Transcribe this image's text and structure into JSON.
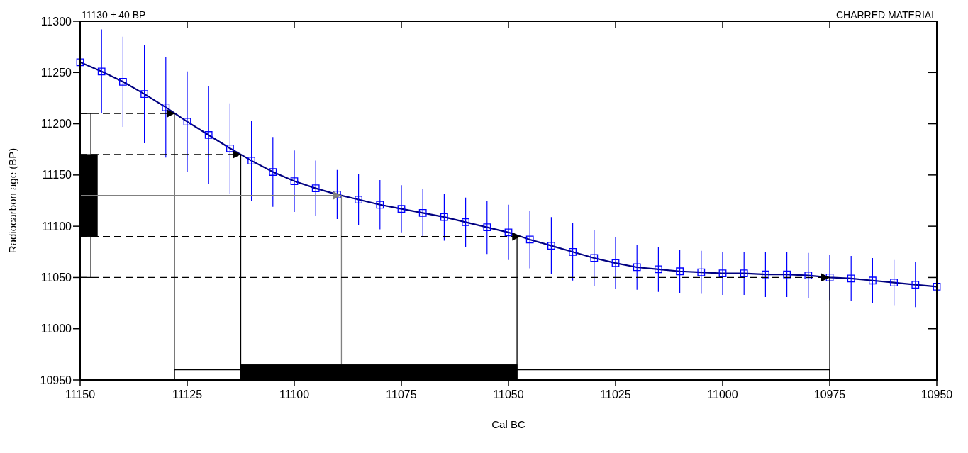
{
  "chart_data": {
    "type": "line",
    "title": "11130 ± 40 BP",
    "annotations": [
      "CHARRED MATERIAL"
    ],
    "xlabel": "Cal BC",
    "ylabel": "Radiocarbon age (BP)",
    "xlim": [
      11150,
      10950
    ],
    "xticks": [
      11150,
      11125,
      11100,
      11075,
      11050,
      11025,
      11000,
      10975,
      10950
    ],
    "ylim": [
      10950,
      11300
    ],
    "yticks": [
      10950,
      11000,
      11050,
      11100,
      11150,
      11200,
      11250,
      11300
    ],
    "grid": false,
    "series": [
      {
        "color": "#000080",
        "x": [
          11150,
          11145,
          11140,
          11135,
          11130,
          11125,
          11120,
          11115,
          11110,
          11105,
          11100,
          11095,
          11090,
          11085,
          11080,
          11075,
          11070,
          11065,
          11060,
          11055,
          11050,
          11045,
          11040,
          11035,
          11030,
          11025,
          11020,
          11015,
          11010,
          11005,
          11000,
          10995,
          10990,
          10985,
          10980,
          10975,
          10970,
          10965,
          10960,
          10955,
          10950
        ],
        "values": [
          11260,
          11251,
          11241,
          11229,
          11216,
          11202,
          11189,
          11176,
          11164,
          11153,
          11144,
          11137,
          11131,
          11126,
          11121,
          11117,
          11113,
          11109,
          11104,
          11099,
          11094,
          11087,
          11081,
          11075,
          11069,
          11064,
          11060,
          11058,
          11056,
          11055,
          11054,
          11054,
          11053,
          11053,
          11052,
          11050,
          11049,
          11047,
          11045,
          11043,
          11041
        ]
      },
      {
        "type": "scatter",
        "color": "#0000ff",
        "marker": "square",
        "x": [
          11150,
          11145,
          11140,
          11135,
          11130,
          11125,
          11120,
          11115,
          11110,
          11105,
          11100,
          11095,
          11090,
          11085,
          11080,
          11075,
          11070,
          11065,
          11060,
          11055,
          11050,
          11045,
          11040,
          11035,
          11030,
          11025,
          11020,
          11015,
          11010,
          11005,
          11000,
          10995,
          10990,
          10985,
          10980,
          10975,
          10970,
          10965,
          10960,
          10955,
          10950
        ],
        "values": [
          11260,
          11251,
          11241,
          11229,
          11216,
          11202,
          11189,
          11176,
          11164,
          11153,
          11144,
          11137,
          11131,
          11126,
          11121,
          11117,
          11113,
          11109,
          11104,
          11099,
          11094,
          11087,
          11081,
          11075,
          11069,
          11064,
          11060,
          11058,
          11056,
          11055,
          11054,
          11054,
          11053,
          11053,
          11052,
          11050,
          11049,
          11047,
          11045,
          11043,
          11041
        ],
        "errors": [
          null,
          41,
          44,
          48,
          49,
          49,
          48,
          44,
          39,
          34,
          30,
          27,
          24,
          25,
          24,
          23,
          23,
          23,
          24,
          26,
          27,
          28,
          28,
          28,
          27,
          25,
          22,
          22,
          21,
          21,
          21,
          21,
          22,
          22,
          22,
          22,
          22,
          22,
          22,
          22,
          null
        ]
      },
      {
        "type": "line",
        "color": "#000000",
        "x": [
          11128,
          11128
        ],
        "values": [
          11210,
          10950
        ]
      },
      {
        "type": "line",
        "color": "#000000",
        "x": [
          11112.5,
          11112.5
        ],
        "values": [
          11170,
          10950
        ]
      },
      {
        "type": "line",
        "color": "#808080",
        "x": [
          11089,
          11089
        ],
        "values": [
          11130,
          10965
        ]
      },
      {
        "type": "line",
        "color": "#000000",
        "x": [
          11048,
          11048
        ],
        "values": [
          11090,
          10950
        ]
      },
      {
        "type": "line",
        "color": "#000000",
        "x": [
          10975,
          10975
        ],
        "values": [
          11050,
          10950
        ]
      },
      {
        "type": "line",
        "color": "#000000",
        "x": [
          11128,
          11128,
          10975,
          10975
        ],
        "values": [
          10950,
          10960,
          10960,
          10950
        ]
      },
      {
        "type": "area",
        "color": "#000000",
        "x": [
          11112.5,
          11112.5,
          11048,
          11048
        ],
        "values": [
          10950,
          10965,
          10965,
          10950
        ]
      },
      {
        "type": "line",
        "color": "#000000",
        "x": [
          11150,
          11147.5,
          11147.5,
          11150
        ],
        "values": [
          11210,
          11210,
          11050,
          11050
        ]
      },
      {
        "type": "area",
        "color": "#000000",
        "x": [
          11150,
          11146,
          11146,
          11150
        ],
        "values": [
          11170,
          11170,
          11090,
          11090
        ]
      }
    ],
    "ref_lines": [
      {
        "axis": "y",
        "value": 11210,
        "color": "#000000",
        "line_style": "dashed"
      },
      {
        "axis": "y",
        "value": 11170,
        "color": "#000000",
        "line_style": "dashed"
      },
      {
        "axis": "y",
        "value": 11130,
        "color": "#808080",
        "line_style": "solid"
      },
      {
        "axis": "y",
        "value": 11090,
        "color": "#000000",
        "line_style": "dashed"
      },
      {
        "axis": "y",
        "value": 11050,
        "color": "#000000",
        "line_style": "dashed"
      }
    ]
  }
}
